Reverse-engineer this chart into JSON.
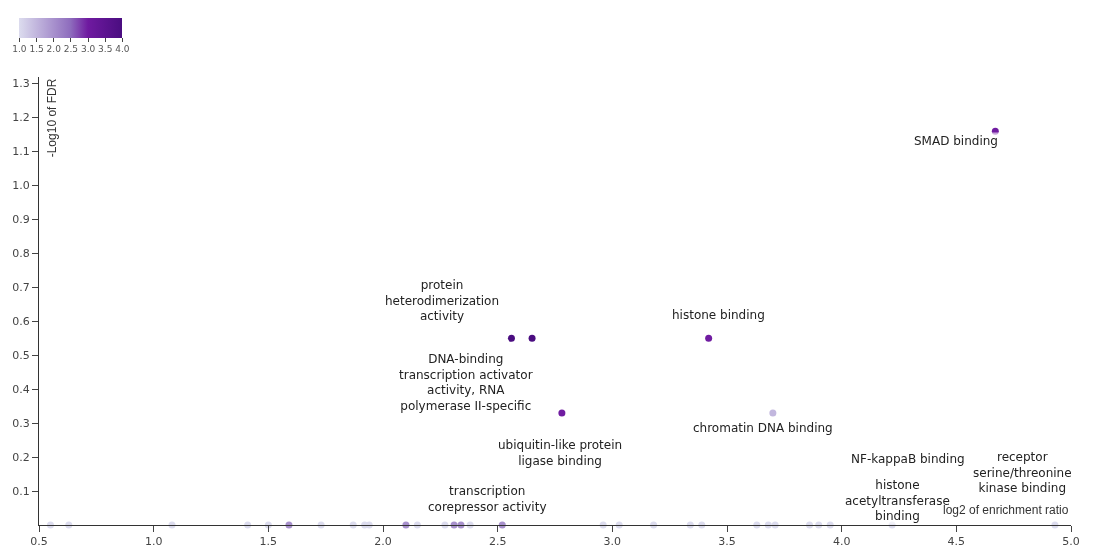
{
  "chart_data": {
    "type": "scatter",
    "xlabel": "log2 of enrichment ratio",
    "ylabel": "-Log10 of FDR",
    "x": [
      4.67,
      2.56,
      2.65,
      3.42,
      2.78,
      3.7,
      0.55,
      0.63,
      1.08,
      1.41,
      1.5,
      1.59,
      1.73,
      1.87,
      1.92,
      1.94,
      2.1,
      2.15,
      2.27,
      2.31,
      2.34,
      2.38,
      2.52,
      2.96,
      3.03,
      3.18,
      3.34,
      3.39,
      3.63,
      3.68,
      3.71,
      3.86,
      3.9,
      3.95,
      4.93,
      4.22
    ],
    "values": [
      1.16,
      0.55,
      0.55,
      0.55,
      0.33,
      0.33,
      0,
      0,
      0,
      0,
      0,
      0,
      0,
      0,
      0,
      0,
      0,
      0,
      0,
      0,
      0,
      0,
      0,
      0,
      0,
      0,
      0,
      0,
      0,
      0,
      0,
      0,
      0,
      0,
      0,
      0
    ],
    "cvalues": [
      3,
      4,
      4,
      3,
      3,
      1.5,
      1,
      1,
      1,
      1,
      1,
      2,
      1,
      1,
      1,
      1,
      2,
      1,
      1,
      2,
      2,
      1,
      2,
      1,
      1,
      1,
      1,
      1,
      1,
      1,
      1,
      1,
      1,
      1,
      1,
      1
    ],
    "clim": [
      1,
      4
    ],
    "cticks": [
      {
        "value": 1,
        "label": "1.0"
      },
      {
        "value": 1.5,
        "label": "1.5"
      },
      {
        "value": 2,
        "label": "2.0"
      },
      {
        "value": 2.5,
        "label": "2.5"
      },
      {
        "value": 3,
        "label": "3.0"
      },
      {
        "value": 3.5,
        "label": "3.5"
      },
      {
        "value": 4,
        "label": "4.0"
      }
    ],
    "xlim": [
      0.5,
      5.0
    ],
    "ylim": [
      0,
      1.32
    ],
    "xticks": [
      {
        "value": 0.5,
        "label": "0.5"
      },
      {
        "value": 1,
        "label": "1.0"
      },
      {
        "value": 1.5,
        "label": "1.5"
      },
      {
        "value": 2,
        "label": "2.0"
      },
      {
        "value": 2.5,
        "label": "2.5"
      },
      {
        "value": 3,
        "label": "3.0"
      },
      {
        "value": 3.5,
        "label": "3.5"
      },
      {
        "value": 4,
        "label": "4.0"
      },
      {
        "value": 4.5,
        "label": "4.5"
      },
      {
        "value": 5,
        "label": "5.0"
      }
    ],
    "yticks": [
      0.1,
      0.2,
      0.3,
      0.4,
      0.5,
      0.6,
      0.7,
      0.8,
      0.9,
      {
        "value": 1,
        "label": "1.0"
      },
      1.1,
      1.2,
      1.3
    ],
    "marker": "circle",
    "annotations": [
      {
        "text": "SMAD binding",
        "x": 4.67,
        "y": 1.16
      },
      {
        "text": "protein\nheterodimerization\nactivity",
        "x": 2.56,
        "y": 0.55
      },
      {
        "text": "histone binding",
        "x": 3.42,
        "y": 0.55
      },
      {
        "text": "DNA-binding\ntranscription activator\nactivity, RNA\npolymerase II-specific",
        "x": 2.65,
        "y": 0.55
      },
      {
        "text": "ubiquitin-like protein\nligase binding",
        "x": 2.78,
        "y": 0.33
      },
      {
        "text": "chromatin DNA binding",
        "x": 3.7,
        "y": 0.33
      },
      {
        "text": "transcription\ncorepressor activity",
        "x": 2.52,
        "y": 0
      },
      "NF-kappaB binding",
      {
        "text": "histone\nacetyltransferase\nbinding",
        "x": 4.22,
        "y": 0
      },
      {
        "text": "receptor\nserine/threonine\nkinase binding",
        "x": 4.93,
        "y": 0
      }
    ]
  }
}
